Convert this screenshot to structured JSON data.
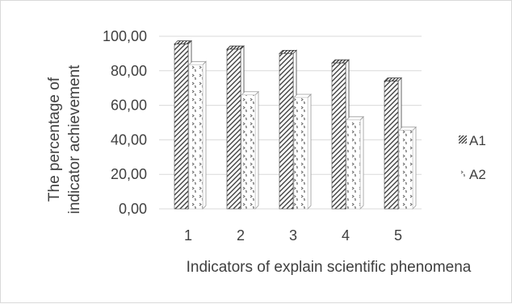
{
  "chart_data": {
    "type": "bar",
    "subtype": "3d-clustered-column",
    "categories": [
      "1",
      "2",
      "3",
      "4",
      "5"
    ],
    "series": [
      {
        "name": "A1",
        "values": [
          95.5,
          92.5,
          90.0,
          84.5,
          74.0
        ],
        "pattern": "diagonal-hatch",
        "color": "#404040"
      },
      {
        "name": "A2",
        "values": [
          83.5,
          66.0,
          64.5,
          51.5,
          45.5
        ],
        "pattern": "dotted-chevron",
        "color": "#595959"
      }
    ],
    "yticks": [
      "0,00",
      "20,00",
      "40,00",
      "60,00",
      "80,00",
      "100,00"
    ],
    "ylim": [
      0,
      100
    ],
    "xlabel": "Indicators of explain scientific phenomena",
    "ylabel_lines": [
      "The percentage of",
      "indicator achievement"
    ],
    "grid": true,
    "legend": "right"
  }
}
